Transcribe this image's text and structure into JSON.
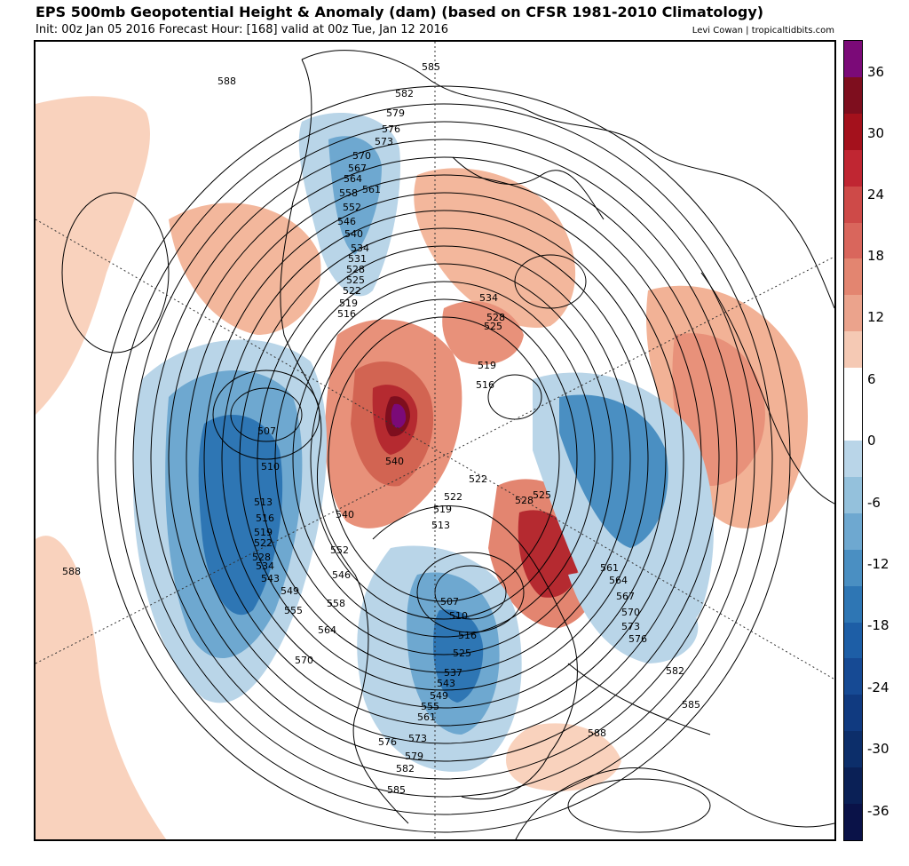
{
  "header": {
    "title": "EPS 500mb Geopotential Height & Anomaly (dam) (based on CFSR 1981-2010 Climatology)",
    "subtitle": "Init: 00z Jan 05 2016   Forecast Hour: [168]   valid at 00z Tue, Jan 12 2016",
    "credit": "Levi Cowan | tropicaltidbits.com"
  },
  "colorbar": {
    "ticks": [
      "36",
      "30",
      "24",
      "18",
      "12",
      "6",
      "0",
      "-6",
      "-12",
      "-18",
      "-24",
      "-30",
      "-36"
    ],
    "colors": [
      "#7b0a78",
      "#7e0e1e",
      "#a4111c",
      "#c02632",
      "#ce4a48",
      "#d9665c",
      "#e38570",
      "#eba38c",
      "#f5c9b4",
      "#ffffff",
      "#ffffff",
      "#b9d5e8",
      "#94c1dc",
      "#6ea8d0",
      "#4a8fc2",
      "#2e76b4",
      "#1d5ea6",
      "#164a94",
      "#103a80",
      "#0c2e6a",
      "#0a2056",
      "#0a1248"
    ]
  },
  "contour_labels": [
    "585",
    "582",
    "579",
    "576",
    "573",
    "570",
    "567",
    "564",
    "561",
    "558",
    "552",
    "546",
    "540",
    "534",
    "531",
    "528",
    "525",
    "522",
    "519",
    "516",
    "510",
    "507",
    "513",
    "543",
    "549",
    "555",
    "537",
    "588"
  ],
  "icons": [
    "polar-stereographic-map",
    "coastline-shape",
    "contour-line"
  ]
}
